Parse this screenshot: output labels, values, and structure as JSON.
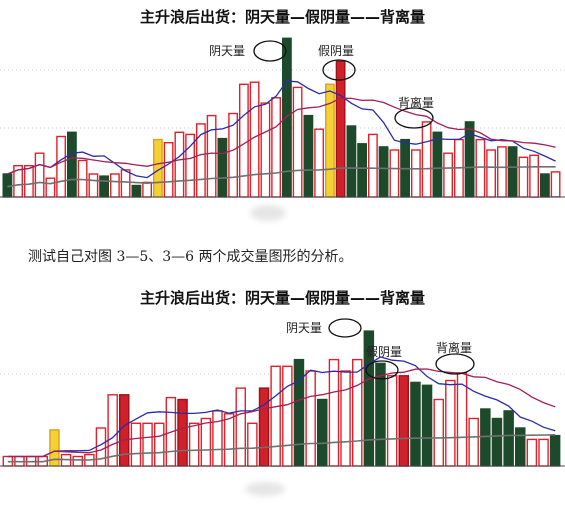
{
  "title_top": "主升浪后出货：阴天量—假阴量——背离量",
  "caption": "测试自己对图 3—5、3—6 两个成交量图形的分析。",
  "title_bottom": "主升浪后出货：阴天量—假阴量——背离量",
  "chart_data": [
    {
      "type": "bar",
      "title": "主升浪后出货：阴天量—假阴量——背离量",
      "annotations": [
        "阴天量",
        "假阴量",
        "背离量"
      ],
      "ylim": [
        0,
        160
      ],
      "bars": [
        {
          "v": 22,
          "k": "g"
        },
        {
          "v": 30,
          "k": "r"
        },
        {
          "v": 30,
          "k": "r"
        },
        {
          "v": 42,
          "k": "r"
        },
        {
          "v": 18,
          "k": "r"
        },
        {
          "v": 58,
          "k": "r"
        },
        {
          "v": 62,
          "k": "g"
        },
        {
          "v": 35,
          "k": "r"
        },
        {
          "v": 22,
          "k": "r"
        },
        {
          "v": 20,
          "k": "g"
        },
        {
          "v": 22,
          "k": "r"
        },
        {
          "v": 26,
          "k": "r"
        },
        {
          "v": 11,
          "k": "g"
        },
        {
          "v": 14,
          "k": "r"
        },
        {
          "v": 55,
          "k": "y"
        },
        {
          "v": 52,
          "k": "r"
        },
        {
          "v": 62,
          "k": "r"
        },
        {
          "v": 60,
          "k": "r"
        },
        {
          "v": 70,
          "k": "r"
        },
        {
          "v": 78,
          "k": "r"
        },
        {
          "v": 56,
          "k": "g"
        },
        {
          "v": 80,
          "k": "r"
        },
        {
          "v": 108,
          "k": "r"
        },
        {
          "v": 110,
          "k": "r"
        },
        {
          "v": 90,
          "k": "r"
        },
        {
          "v": 95,
          "k": "r"
        },
        {
          "v": 152,
          "k": "g"
        },
        {
          "v": 105,
          "k": "r"
        },
        {
          "v": 78,
          "k": "g"
        },
        {
          "v": 65,
          "k": "r"
        },
        {
          "v": 108,
          "k": "y"
        },
        {
          "v": 130,
          "k": "d"
        },
        {
          "v": 68,
          "k": "g"
        },
        {
          "v": 51,
          "k": "g"
        },
        {
          "v": 60,
          "k": "r"
        },
        {
          "v": 48,
          "k": "g"
        },
        {
          "v": 45,
          "k": "r"
        },
        {
          "v": 55,
          "k": "g"
        },
        {
          "v": 45,
          "k": "r"
        },
        {
          "v": 72,
          "k": "r"
        },
        {
          "v": 62,
          "k": "g"
        },
        {
          "v": 42,
          "k": "r"
        },
        {
          "v": 55,
          "k": "r"
        },
        {
          "v": 72,
          "k": "g"
        },
        {
          "v": 55,
          "k": "r"
        },
        {
          "v": 45,
          "k": "r"
        },
        {
          "v": 48,
          "k": "r"
        },
        {
          "v": 48,
          "k": "g"
        },
        {
          "v": 38,
          "k": "r"
        },
        {
          "v": 40,
          "k": "r"
        },
        {
          "v": 22,
          "k": "g"
        },
        {
          "v": 24,
          "k": "r"
        }
      ]
    },
    {
      "type": "bar",
      "title": "主升浪后出货：阴天量—假阴量——背离量",
      "annotations": [
        "阴天量",
        "假阴量",
        "背离量"
      ],
      "ylim": [
        0,
        160
      ],
      "bars": [
        {
          "v": 10,
          "k": "r"
        },
        {
          "v": 10,
          "k": "r"
        },
        {
          "v": 10,
          "k": "r"
        },
        {
          "v": 10,
          "k": "r"
        },
        {
          "v": 38,
          "k": "y"
        },
        {
          "v": 12,
          "k": "r"
        },
        {
          "v": 10,
          "k": "r"
        },
        {
          "v": 12,
          "k": "r"
        },
        {
          "v": 40,
          "k": "r"
        },
        {
          "v": 75,
          "k": "r"
        },
        {
          "v": 75,
          "k": "d"
        },
        {
          "v": 45,
          "k": "r"
        },
        {
          "v": 45,
          "k": "r"
        },
        {
          "v": 45,
          "k": "r"
        },
        {
          "v": 72,
          "k": "r"
        },
        {
          "v": 70,
          "k": "d"
        },
        {
          "v": 45,
          "k": "r"
        },
        {
          "v": 50,
          "k": "r"
        },
        {
          "v": 58,
          "k": "r"
        },
        {
          "v": 55,
          "k": "r"
        },
        {
          "v": 82,
          "k": "r"
        },
        {
          "v": 45,
          "k": "r"
        },
        {
          "v": 82,
          "k": "d"
        },
        {
          "v": 105,
          "k": "r"
        },
        {
          "v": 105,
          "k": "r"
        },
        {
          "v": 112,
          "k": "g"
        },
        {
          "v": 100,
          "k": "r"
        },
        {
          "v": 70,
          "k": "g"
        },
        {
          "v": 112,
          "k": "r"
        },
        {
          "v": 100,
          "k": "r"
        },
        {
          "v": 112,
          "k": "r"
        },
        {
          "v": 142,
          "k": "g"
        },
        {
          "v": 108,
          "k": "g"
        },
        {
          "v": 95,
          "k": "r"
        },
        {
          "v": 95,
          "k": "d"
        },
        {
          "v": 88,
          "k": "g"
        },
        {
          "v": 85,
          "k": "g"
        },
        {
          "v": 70,
          "k": "r"
        },
        {
          "v": 90,
          "k": "r"
        },
        {
          "v": 98,
          "k": "r"
        },
        {
          "v": 50,
          "k": "r"
        },
        {
          "v": 60,
          "k": "g"
        },
        {
          "v": 50,
          "k": "g"
        },
        {
          "v": 58,
          "k": "g"
        },
        {
          "v": 40,
          "k": "g"
        },
        {
          "v": 28,
          "k": "r"
        },
        {
          "v": 28,
          "k": "r"
        },
        {
          "v": 32,
          "k": "g"
        }
      ]
    }
  ]
}
